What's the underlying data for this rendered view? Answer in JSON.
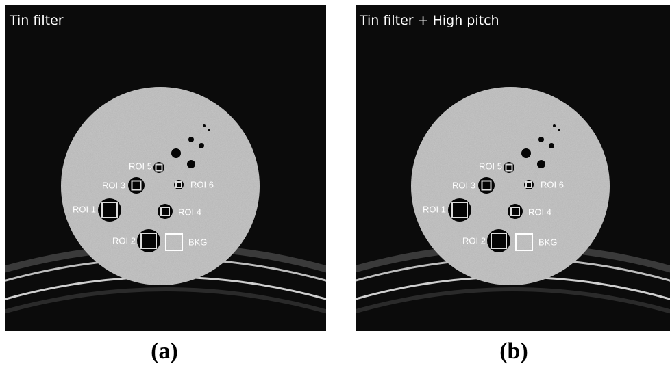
{
  "panels": [
    {
      "title": "Tin filter",
      "caption": "(a)",
      "labels": [
        "ROI 1",
        "ROI 2",
        "ROI 3",
        "ROI 4",
        "ROI 5",
        "ROI 6",
        "BKG"
      ]
    },
    {
      "title": "Tin filter + High pitch",
      "caption": "(b)",
      "labels": [
        "ROI 1",
        "ROI 2",
        "ROI 3",
        "ROI 4",
        "ROI 5",
        "ROI 6",
        "BKG"
      ]
    }
  ]
}
